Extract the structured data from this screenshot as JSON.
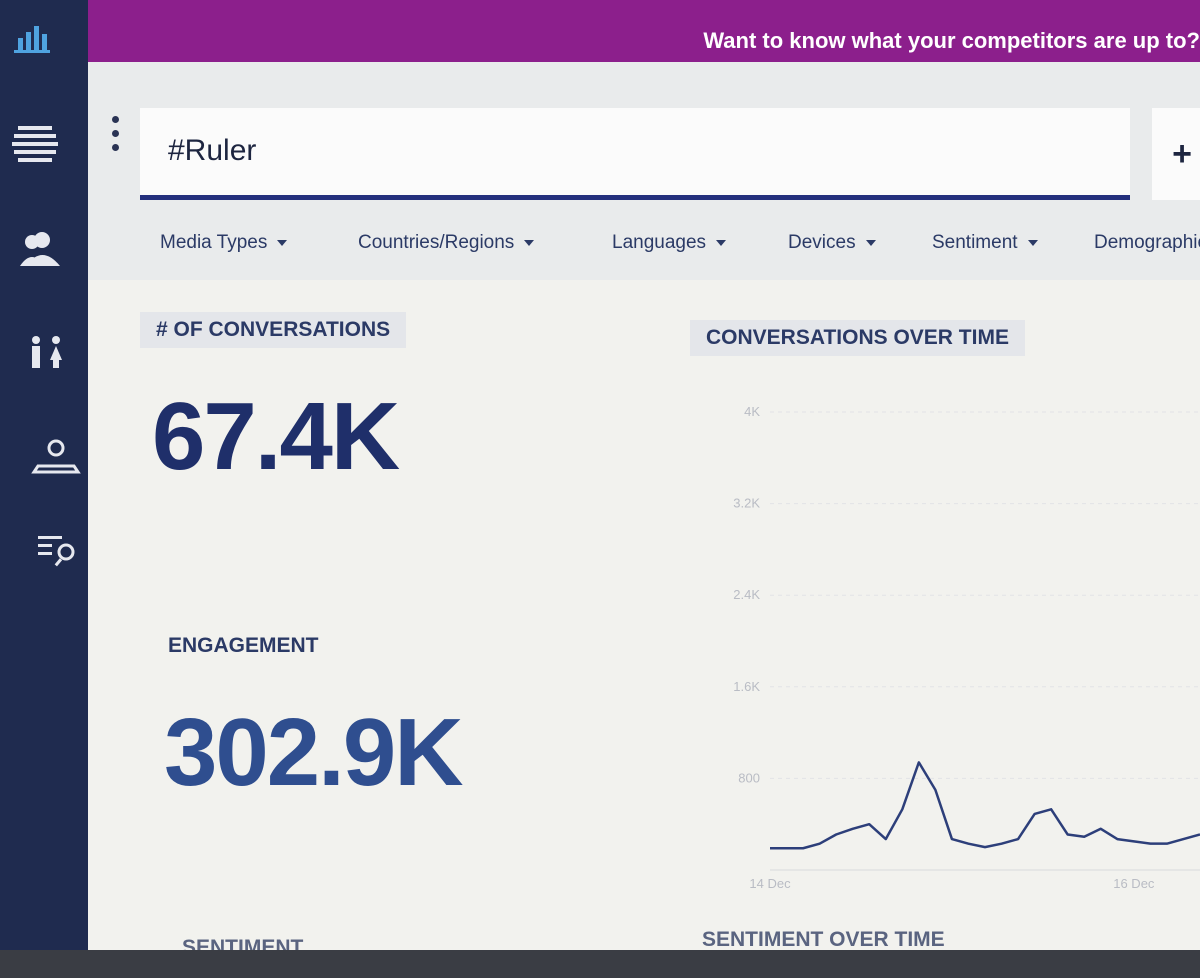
{
  "banner": {
    "text": "Want to know what your competitors are up to?"
  },
  "search": {
    "query": "#Ruler",
    "add_button": "+"
  },
  "filters": [
    "Media Types",
    "Countries/Regions",
    "Languages",
    "Devices",
    "Sentiment",
    "Demographics"
  ],
  "metrics": [
    {
      "label": "# OF CONVERSATIONS",
      "value": "67.4K"
    },
    {
      "label": "ENGAGEMENT",
      "value": "302.9K"
    }
  ],
  "sections": [
    "SENTIMENT",
    "SENTIMENT OVER TIME"
  ],
  "chart_data": {
    "type": "line",
    "title": "CONVERSATIONS OVER TIME",
    "categories": [
      "14 Dec",
      null,
      null,
      null,
      null,
      null,
      null,
      null,
      null,
      null,
      null,
      null,
      null,
      null,
      null,
      null,
      null,
      null,
      null,
      null,
      null,
      null,
      "16 Dec",
      null,
      null,
      null,
      null
    ],
    "values": [
      190,
      190,
      190,
      230,
      310,
      360,
      400,
      270,
      530,
      940,
      700,
      270,
      230,
      200,
      230,
      270,
      490,
      530,
      310,
      290,
      360,
      270,
      250,
      230,
      230,
      270,
      310
    ],
    "color": "#2d3f7a",
    "ylim": [
      0,
      4000
    ],
    "yticks": [
      800,
      {
        "value": 1600,
        "label": "1.6K"
      },
      {
        "value": 2400,
        "label": "2.4K"
      },
      {
        "value": 3200,
        "label": "3.2K"
      },
      {
        "value": 4000,
        "label": "4K"
      }
    ],
    "grid": true
  }
}
